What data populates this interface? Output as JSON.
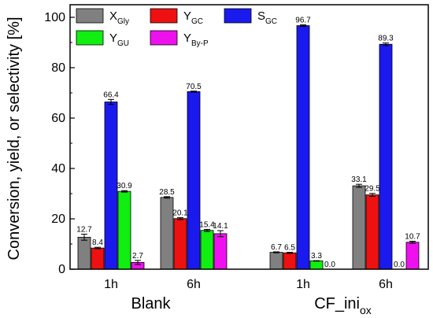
{
  "chart_data": {
    "type": "bar",
    "title": "",
    "ylabel": "Conversion, yield, or selectivity [%]",
    "ylim": [
      0,
      105
    ],
    "yticks": [
      0,
      20,
      40,
      60,
      80,
      100
    ],
    "groups": [
      {
        "name": "Blank",
        "categories": [
          "1h",
          "6h"
        ]
      },
      {
        "name": "CF_ini",
        "name_sub": "ox",
        "categories": [
          "1h",
          "6h"
        ]
      }
    ],
    "series": [
      {
        "name": "X",
        "sub": "Gly",
        "color": "#808080",
        "values": [
          12.7,
          28.5,
          6.7,
          33.1
        ],
        "errors": [
          1.2,
          0.3,
          0.2,
          0.6
        ]
      },
      {
        "name": "Y",
        "sub": "GC",
        "color": "#ee1111",
        "values": [
          8.4,
          20.1,
          6.5,
          29.5
        ],
        "errors": [
          0.3,
          0.4,
          0.2,
          0.6
        ]
      },
      {
        "name": "S",
        "sub": "GC",
        "color": "#1a1aee",
        "values": [
          66.4,
          70.5,
          96.7,
          89.3
        ],
        "errors": [
          1.0,
          0.2,
          0.3,
          0.5
        ]
      },
      {
        "name": "Y",
        "sub": "GU",
        "color": "#11ee11",
        "values": [
          30.9,
          15.4,
          3.3,
          0.0
        ],
        "errors": [
          0.3,
          0.4,
          0.1,
          0.0
        ]
      },
      {
        "name": "Y",
        "sub": "By-P",
        "color": "#ee11ee",
        "values": [
          2.7,
          14.1,
          0.0,
          10.7
        ],
        "errors": [
          0.8,
          1.2,
          0.0,
          0.4
        ]
      }
    ],
    "data_labels": [
      [
        "12.7",
        "28.5",
        "6.7",
        "33.1"
      ],
      [
        "8.4",
        "20.1",
        "6.5",
        "29.5"
      ],
      [
        "66.4",
        "70.5",
        "96.7",
        "89.3"
      ],
      [
        "30.9",
        "15.4",
        "3.3",
        "0.0"
      ],
      [
        "2.7",
        "14.1",
        "0.0",
        "10.7"
      ]
    ],
    "legend_placement": "top-left",
    "grid": false
  }
}
